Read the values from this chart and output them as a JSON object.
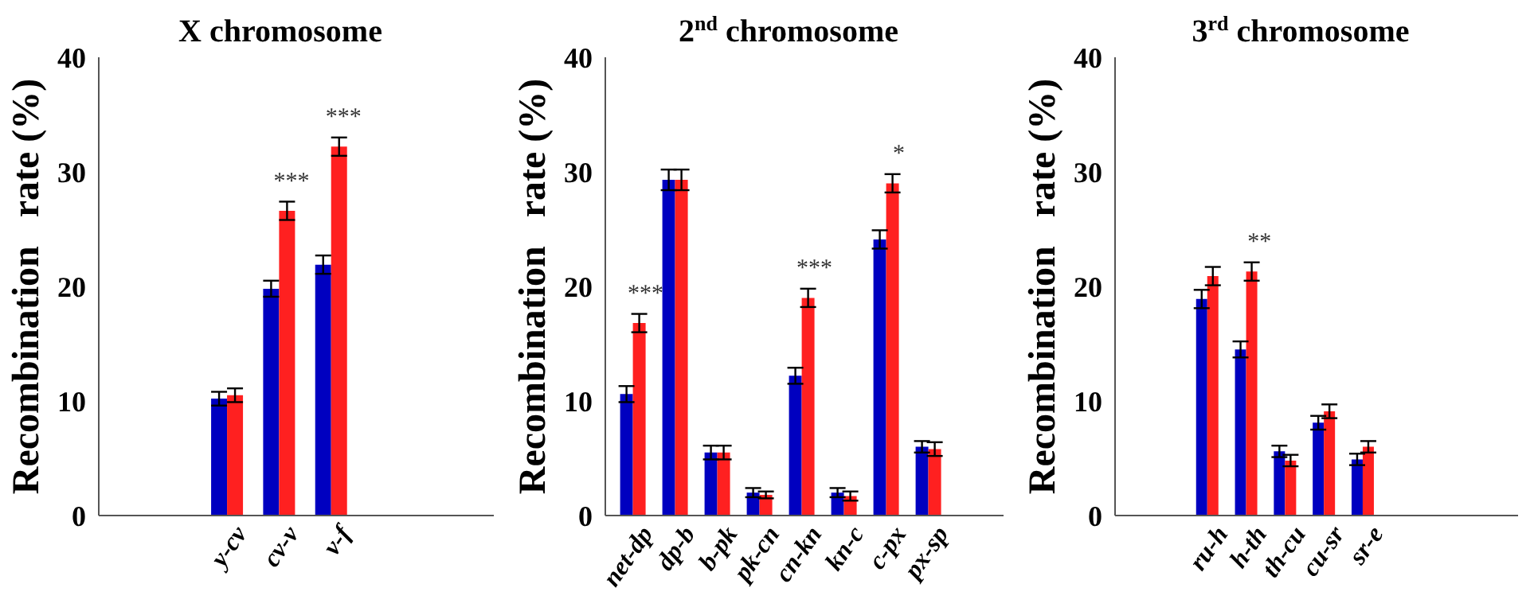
{
  "chart_data": [
    {
      "type": "bar",
      "title": "X chromosome",
      "ylabel": "Recombination   rate (%)",
      "categories": [
        "y-cv",
        "cv-v",
        "v-f"
      ],
      "ylim": [
        0,
        40
      ],
      "yticks": [
        0,
        10,
        20,
        30,
        40
      ],
      "grid": false,
      "legend": false,
      "series": [
        {
          "color": "#0000c0",
          "values": [
            10.2,
            19.8,
            21.9
          ],
          "errors": [
            0.6,
            0.7,
            0.8
          ]
        },
        {
          "color": "#ff2020",
          "values": [
            10.5,
            26.6,
            32.2
          ],
          "errors": [
            0.6,
            0.8,
            0.8
          ]
        }
      ],
      "annotations": [
        {
          "text": "***",
          "x": "cv-v",
          "y": 26.6
        },
        {
          "text": "***",
          "x": "v-f",
          "y": 32.2
        }
      ]
    },
    {
      "type": "bar",
      "title": "2$^{nd}$ chromosome",
      "ylabel": "Recombination   rate (%)",
      "categories": [
        "net-dp",
        "dp-b",
        "b-pk",
        "pk-cn",
        "cn-kn",
        "kn-c",
        "c-px",
        "px-sp"
      ],
      "ylim": [
        0,
        40
      ],
      "yticks": [
        0,
        10,
        20,
        30,
        40
      ],
      "grid": false,
      "legend": false,
      "series": [
        {
          "color": "#0000c0",
          "values": [
            10.6,
            29.3,
            5.5,
            2.0,
            12.2,
            2.0,
            24.1,
            6.0
          ],
          "errors": [
            0.7,
            0.9,
            0.6,
            0.4,
            0.7,
            0.4,
            0.8,
            0.5
          ]
        },
        {
          "color": "#ff2020",
          "values": [
            16.8,
            29.3,
            5.5,
            1.8,
            19.0,
            1.7,
            29.0,
            5.8
          ],
          "errors": [
            0.8,
            0.9,
            0.6,
            0.3,
            0.8,
            0.4,
            0.8,
            0.6
          ]
        }
      ],
      "annotations": [
        {
          "text": "***",
          "x": "net-dp",
          "y": 16.8
        },
        {
          "text": "***",
          "x": "cn-kn",
          "y": 19.0
        },
        {
          "text": "*",
          "x": "c-px",
          "y": 29.0
        }
      ]
    },
    {
      "type": "bar",
      "title": "3$^{rd}$ chromosome",
      "ylabel": "Recombination   rate (%)",
      "categories": [
        "ru-h",
        "h-th",
        "th-cu",
        "cu-sr",
        "sr-e"
      ],
      "ylim": [
        0,
        40
      ],
      "yticks": [
        0,
        10,
        20,
        30,
        40
      ],
      "grid": false,
      "legend": false,
      "series": [
        {
          "color": "#0000c0",
          "values": [
            18.9,
            14.5,
            5.6,
            8.1,
            4.9
          ],
          "errors": [
            0.8,
            0.7,
            0.5,
            0.6,
            0.5
          ]
        },
        {
          "color": "#ff2020",
          "values": [
            20.9,
            21.3,
            4.8,
            9.1,
            6.0
          ],
          "errors": [
            0.8,
            0.8,
            0.5,
            0.6,
            0.5
          ]
        }
      ],
      "annotations": [
        {
          "text": "**",
          "x": "h-th",
          "y": 21.3
        }
      ]
    }
  ]
}
